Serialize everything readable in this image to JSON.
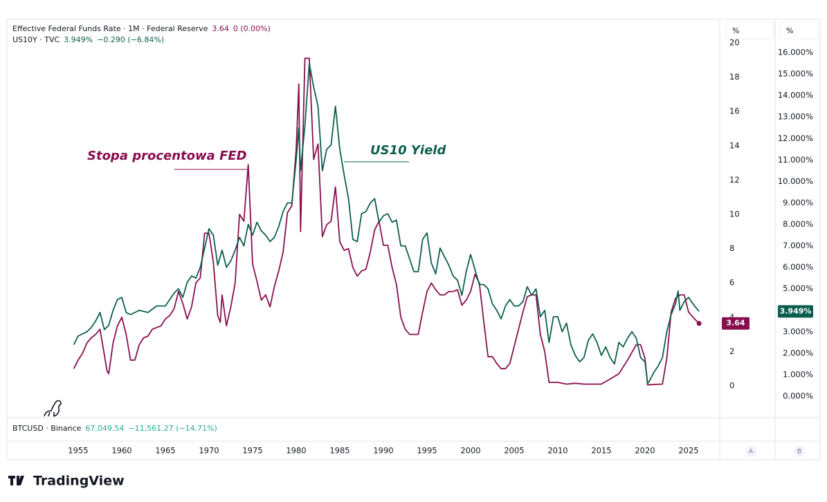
{
  "chart_data": {
    "type": "line",
    "series": [
      {
        "name": "Effective Federal Funds Rate · 1M · Federal Reserve",
        "color": "#880e4f",
        "axis": "y",
        "last_label": "3.64",
        "change_label": "0 (0.00%)",
        "x": [
          1954.5,
          1955,
          1955.5,
          1956,
          1956.5,
          1957,
          1957.5,
          1958,
          1958.3,
          1958.5,
          1959,
          1959.5,
          1960,
          1960.5,
          1961,
          1961.5,
          1962,
          1962.5,
          1963,
          1963.5,
          1964,
          1964.5,
          1965,
          1965.5,
          1966,
          1966.5,
          1967,
          1967.5,
          1968,
          1968.5,
          1969,
          1969.5,
          1970,
          1970.5,
          1971,
          1971.3,
          1971.5,
          1972,
          1972.5,
          1973,
          1973.5,
          1974,
          1974.5,
          1975,
          1975.5,
          1976,
          1976.5,
          1977,
          1977.5,
          1978,
          1978.5,
          1979,
          1979.5,
          1980,
          1980.3,
          1980.5,
          1981,
          1981.5,
          1982,
          1982.5,
          1983,
          1983.5,
          1984,
          1984.5,
          1985,
          1985.5,
          1986,
          1986.5,
          1987,
          1987.5,
          1988,
          1988.5,
          1989,
          1989.5,
          1990,
          1990.5,
          1991,
          1991.5,
          1992,
          1992.5,
          1993,
          1993.5,
          1994,
          1994.5,
          1995,
          1995.5,
          1996,
          1996.5,
          1997,
          1997.5,
          1998,
          1998.5,
          1999,
          1999.5,
          2000,
          2000.5,
          2001,
          2001.5,
          2002,
          2002.5,
          2003,
          2003.5,
          2004,
          2004.5,
          2005,
          2005.5,
          2006,
          2006.5,
          2007,
          2007.5,
          2008,
          2008.5,
          2009,
          2010,
          2011,
          2012,
          2013,
          2014,
          2015,
          2016,
          2017,
          2018,
          2019,
          2019.5,
          2020,
          2020.3,
          2021,
          2022,
          2022.5,
          2023,
          2023.5,
          2024,
          2024.5,
          2025,
          2025.5,
          2026.2
        ],
        "values": [
          1.0,
          1.5,
          1.9,
          2.5,
          2.8,
          3.0,
          3.3,
          1.8,
          0.9,
          0.7,
          2.5,
          3.5,
          4.0,
          3.0,
          1.5,
          1.5,
          2.4,
          2.8,
          2.9,
          3.3,
          3.4,
          3.5,
          3.9,
          4.1,
          4.5,
          5.5,
          4.8,
          3.9,
          4.6,
          6.0,
          6.3,
          8.9,
          8.9,
          7.2,
          4.1,
          3.7,
          5.3,
          3.5,
          4.6,
          6.0,
          10.0,
          9.6,
          12.9,
          7.1,
          6.1,
          5.0,
          5.3,
          4.6,
          5.8,
          6.7,
          7.8,
          10.1,
          10.5,
          13.8,
          17.6,
          9.0,
          19.1,
          19.1,
          13.2,
          14.1,
          8.7,
          9.4,
          9.6,
          11.6,
          8.4,
          7.9,
          8.0,
          6.9,
          6.4,
          6.7,
          6.8,
          7.8,
          9.1,
          9.6,
          8.2,
          8.2,
          6.9,
          5.9,
          4.0,
          3.3,
          3.0,
          3.0,
          3.0,
          4.3,
          5.5,
          6.0,
          5.6,
          5.3,
          5.3,
          5.5,
          5.5,
          5.6,
          4.7,
          5.0,
          5.5,
          6.5,
          6.0,
          3.8,
          1.7,
          1.7,
          1.3,
          1.0,
          1.0,
          1.3,
          2.3,
          3.3,
          4.3,
          5.2,
          5.3,
          5.3,
          3.0,
          2.0,
          0.2,
          0.2,
          0.1,
          0.15,
          0.1,
          0.1,
          0.1,
          0.4,
          0.7,
          1.5,
          2.4,
          2.4,
          1.6,
          0.05,
          0.08,
          0.1,
          1.6,
          4.3,
          5.1,
          5.3,
          5.3,
          4.3,
          4.0,
          3.64
        ]
      },
      {
        "name": "US10Y · TVC",
        "color": "#0b5e4d",
        "axis": "y2",
        "last_label": "3.949%",
        "change_label": "−0.290 (−6.84%)",
        "x": [
          1954.5,
          1955,
          1956,
          1956.5,
          1957,
          1957.5,
          1958,
          1958.5,
          1959,
          1959.5,
          1960,
          1960.5,
          1961,
          1962,
          1963,
          1964,
          1965,
          1966,
          1966.5,
          1967,
          1967.5,
          1968,
          1968.5,
          1969,
          1969.5,
          1970,
          1970.5,
          1971,
          1971.5,
          1972,
          1972.5,
          1973,
          1973.5,
          1974,
          1974.5,
          1975,
          1975.5,
          1976,
          1976.5,
          1977,
          1977.5,
          1978,
          1978.5,
          1979,
          1979.5,
          1980,
          1980.3,
          1980.5,
          1981,
          1981.5,
          1982,
          1982.5,
          1983,
          1983.5,
          1984,
          1984.5,
          1985,
          1985.5,
          1986,
          1986.5,
          1987,
          1987.5,
          1988,
          1988.5,
          1989,
          1989.5,
          1990,
          1990.5,
          1991,
          1991.5,
          1992,
          1992.5,
          1993,
          1993.5,
          1994,
          1994.5,
          1995,
          1995.5,
          1996,
          1996.5,
          1997,
          1997.5,
          1998,
          1998.5,
          1999,
          1999.5,
          2000,
          2000.5,
          2001,
          2001.5,
          2002,
          2002.5,
          2003,
          2003.5,
          2004,
          2004.5,
          2005,
          2005.5,
          2006,
          2006.5,
          2007,
          2007.5,
          2008,
          2008.5,
          2009,
          2009.5,
          2010,
          2010.5,
          2011,
          2011.5,
          2012,
          2012.5,
          2013,
          2013.5,
          2014,
          2014.5,
          2015,
          2015.5,
          2016,
          2016.5,
          2017,
          2017.5,
          2018,
          2018.5,
          2019,
          2019.5,
          2020,
          2020.3,
          2020.5,
          2021,
          2021.5,
          2022,
          2022.5,
          2023,
          2023.5,
          2023.8,
          2024,
          2024.5,
          2025,
          2025.5,
          2026.2
        ],
        "values": [
          2.4,
          2.8,
          3.0,
          3.2,
          3.5,
          3.9,
          3.1,
          3.3,
          4.0,
          4.5,
          4.6,
          3.9,
          3.8,
          4.0,
          3.9,
          4.2,
          4.2,
          4.8,
          5.0,
          4.6,
          5.3,
          5.6,
          5.5,
          6.0,
          6.9,
          7.8,
          7.5,
          6.1,
          6.8,
          6.0,
          6.3,
          6.8,
          7.4,
          7.0,
          8.0,
          7.5,
          8.1,
          7.7,
          7.5,
          7.2,
          7.4,
          7.9,
          8.6,
          9.0,
          9.0,
          11.0,
          12.5,
          10.5,
          12.6,
          15.5,
          14.4,
          13.5,
          10.5,
          11.5,
          11.7,
          13.5,
          11.5,
          10.3,
          9.2,
          7.3,
          7.2,
          8.5,
          8.6,
          9.0,
          9.2,
          8.1,
          8.4,
          8.5,
          8.1,
          8.2,
          7.0,
          7.0,
          6.4,
          5.8,
          5.8,
          7.3,
          7.6,
          6.2,
          5.7,
          6.9,
          6.5,
          6.1,
          5.6,
          5.4,
          4.7,
          5.8,
          6.6,
          5.9,
          5.2,
          5.2,
          5.0,
          4.3,
          4.0,
          3.6,
          4.2,
          4.5,
          4.2,
          4.2,
          4.4,
          5.1,
          4.7,
          5.0,
          3.7,
          4.0,
          2.5,
          3.7,
          3.7,
          3.0,
          3.4,
          2.4,
          1.9,
          1.6,
          1.8,
          2.6,
          2.9,
          2.5,
          1.9,
          2.3,
          1.8,
          1.5,
          2.5,
          2.3,
          2.7,
          3.0,
          2.7,
          1.8,
          1.6,
          0.6,
          0.7,
          1.1,
          1.4,
          1.8,
          3.0,
          3.8,
          4.3,
          4.9,
          4.0,
          4.4,
          4.6,
          4.3,
          3.949
        ]
      }
    ],
    "xlim": [
      1946.83,
      2028.57
    ],
    "xticks": [
      1955,
      1960,
      1965,
      1970,
      1975,
      1980,
      1985,
      1990,
      1995,
      2000,
      2005,
      2010,
      2015,
      2020,
      2025
    ],
    "ylim": [
      -1.815,
      21.37
    ],
    "yticks": [
      0,
      2,
      4,
      6,
      8,
      10,
      12,
      14,
      16,
      18,
      20
    ],
    "y2lim": [
      -0.966,
      17.547
    ],
    "y2ticks": [
      {
        "value": 0,
        "label": "0.000%"
      },
      {
        "value": 1,
        "label": "1.000%"
      },
      {
        "value": 2,
        "label": "2.000%"
      },
      {
        "value": 3,
        "label": "3.000%"
      },
      {
        "value": 4,
        "label": "4.000%"
      },
      {
        "value": 5,
        "label": "5.000%"
      },
      {
        "value": 6,
        "label": "6.000%"
      },
      {
        "value": 7,
        "label": "7.000%"
      },
      {
        "value": 8,
        "label": "8.000%"
      },
      {
        "value": 9,
        "label": "9.000%"
      },
      {
        "value": 10,
        "label": "10.000%"
      },
      {
        "value": 11,
        "label": "11.000%"
      },
      {
        "value": 12,
        "label": "12.000%"
      },
      {
        "value": 13,
        "label": "13.000%"
      },
      {
        "value": 14,
        "label": "14.000%"
      },
      {
        "value": 15,
        "label": "15.000%"
      },
      {
        "value": 16,
        "label": "16.000%"
      }
    ],
    "y_unit": "%",
    "y2_unit": "%",
    "grid": false,
    "annotations": [
      {
        "text": "Stopa procentowa FED",
        "color": "#880e4f"
      },
      {
        "text": "US10 Yield",
        "color": "#0b5e4d"
      }
    ],
    "footer_legend": {
      "name": "BTCUSD · Binance",
      "last": "67,049.54",
      "change": "−11,561.27 (−14.71%)",
      "color": "#22ab94"
    },
    "scale_buttons": [
      "A",
      "B"
    ],
    "brand": "TradingView"
  }
}
